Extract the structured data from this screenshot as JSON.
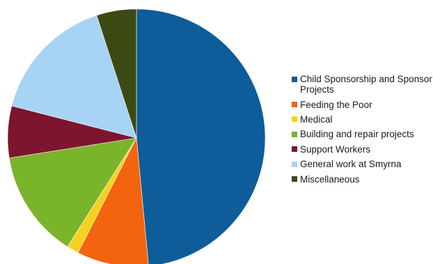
{
  "chart_data": {
    "type": "pie",
    "title": "",
    "slices": [
      {
        "label": "Child Sponsorship and Sponsor Projects",
        "value": 48.5,
        "color": "#0e5c9a"
      },
      {
        "label": "Feeding the Poor",
        "value": 9.0,
        "color": "#f4640f"
      },
      {
        "label": "Medical",
        "value": 1.5,
        "color": "#f5d21f"
      },
      {
        "label": "Building and repair projects",
        "value": 13.5,
        "color": "#7ab42a"
      },
      {
        "label": "Support Workers",
        "value": 6.5,
        "color": "#7d1530"
      },
      {
        "label": "General work at Smyrna",
        "value": 16.0,
        "color": "#a7d3f4"
      },
      {
        "label": "Miscellaneous",
        "value": 5.0,
        "color": "#3b4a13"
      }
    ],
    "start_angle": "12 o'clock",
    "direction": "clockwise",
    "legend_position": "right"
  }
}
